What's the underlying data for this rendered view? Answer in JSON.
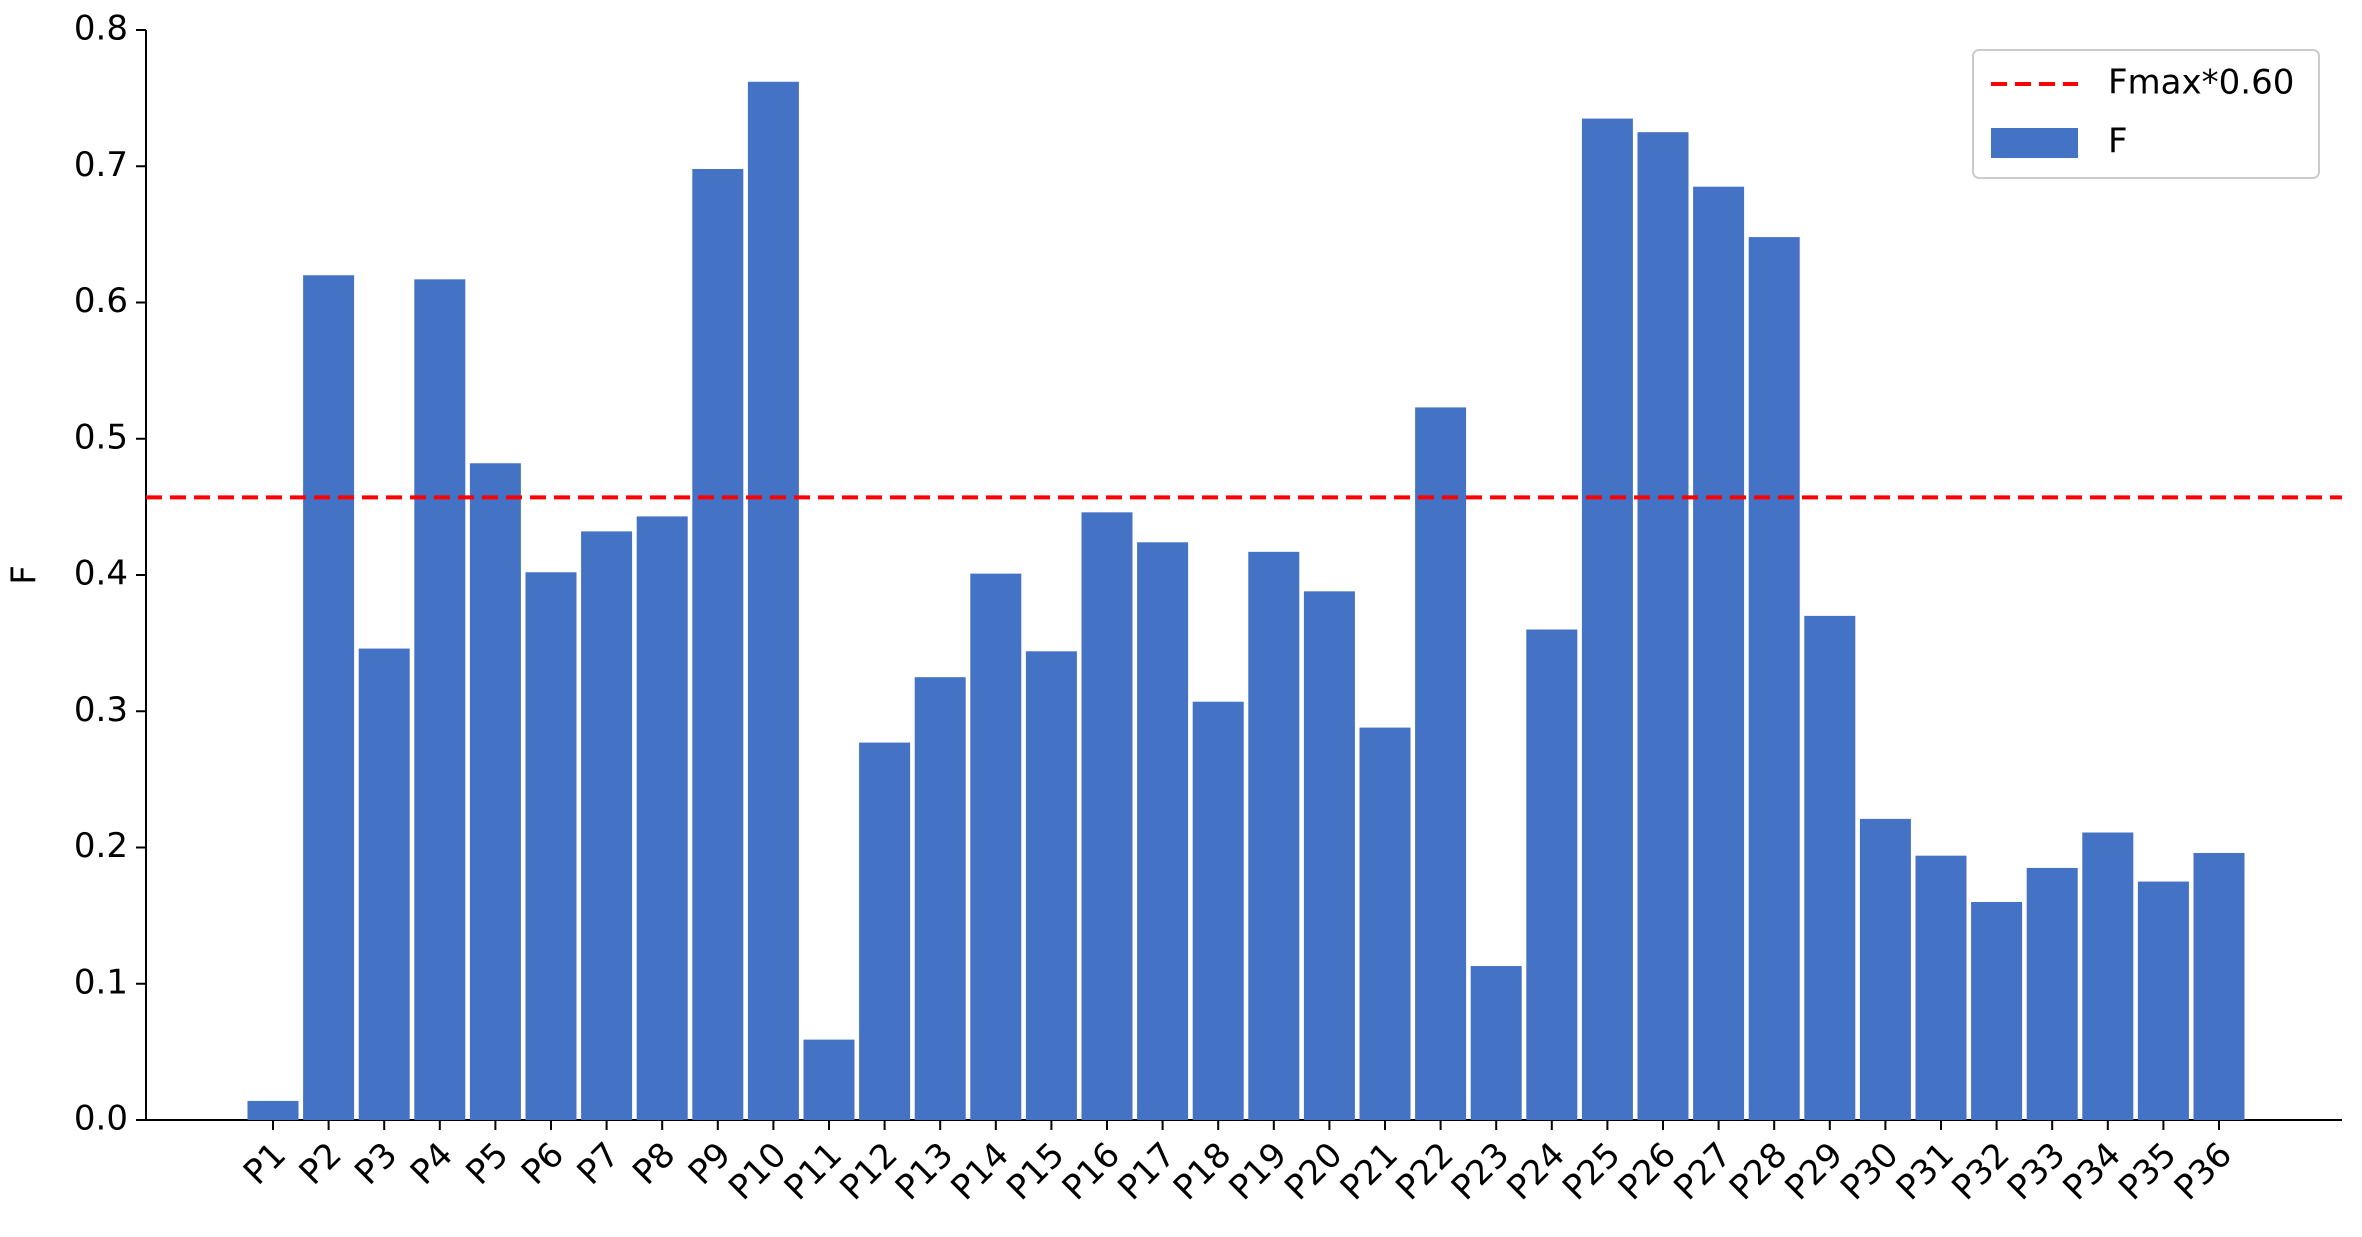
{
  "chart_data": {
    "type": "bar",
    "ylabel": "F",
    "categories": [
      "P1",
      "P2",
      "P3",
      "P4",
      "P5",
      "P6",
      "P7",
      "P8",
      "P9",
      "P10",
      "P11",
      "P12",
      "P13",
      "P14",
      "P15",
      "P16",
      "P17",
      "P18",
      "P19",
      "P20",
      "P21",
      "P22",
      "P23",
      "P24",
      "P25",
      "P26",
      "P27",
      "P28",
      "P29",
      "P30",
      "P31",
      "P32",
      "P33",
      "P34",
      "P35",
      "P36"
    ],
    "series": [
      {
        "name": "F",
        "color": "#4472c4",
        "values": [
          0.014,
          0.62,
          0.346,
          0.617,
          0.482,
          0.402,
          0.432,
          0.443,
          0.698,
          0.762,
          0.059,
          0.277,
          0.325,
          0.401,
          0.344,
          0.446,
          0.424,
          0.307,
          0.417,
          0.388,
          0.288,
          0.523,
          0.113,
          0.36,
          0.735,
          0.725,
          0.685,
          0.648,
          0.37,
          0.221,
          0.194,
          0.16,
          0.185,
          0.211,
          0.175,
          0.196
        ]
      }
    ],
    "hline": {
      "name": "Fmax*0.60",
      "value": 0.457,
      "color": "#ff0000"
    },
    "ylim": [
      0,
      0.8
    ],
    "yticks": [
      {
        "value": 0,
        "label": "0.0"
      },
      0.1,
      0.2,
      0.3,
      0.4,
      0.5,
      0.6,
      0.7,
      0.8
    ],
    "legend": "upper right"
  }
}
